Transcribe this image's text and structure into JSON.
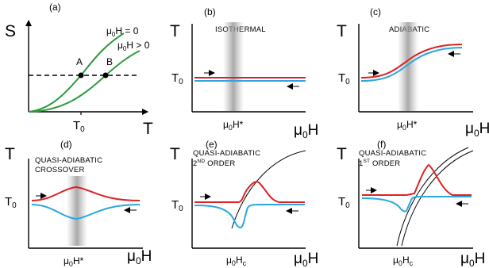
{
  "panels": [
    {
      "id": "a",
      "label": "(a)",
      "y_axis": "S",
      "x_axis": "T",
      "x_tick": "T",
      "x_tick_sub": "0",
      "curve_labels": [
        {
          "mu": "μ",
          "sub": "0",
          "rest": "H = 0"
        },
        {
          "mu": "μ",
          "sub": "0",
          "rest": "H > 0"
        }
      ],
      "points": [
        "A",
        "B"
      ]
    },
    {
      "id": "b",
      "label": "(b)",
      "y_axis": "T",
      "title_lines": [
        "ISOTHERMAL"
      ],
      "y_tick": "T",
      "y_tick_sub": "0",
      "x_tick": {
        "mu": "μ",
        "sub": "0",
        "rest": "H*"
      }
    },
    {
      "id": "c",
      "label": "(c)",
      "y_axis": "T",
      "title_lines": [
        "ADIABATIC"
      ],
      "y_tick": "T",
      "y_tick_sub": "0",
      "x_tick": {
        "mu": "μ",
        "sub": "0",
        "rest": "H*"
      },
      "x_axis": {
        "mu": "μ",
        "sub": "0",
        "rest": "H"
      }
    },
    {
      "id": "d",
      "label": "(d)",
      "y_axis": "T",
      "title_lines": [
        "QUASI-ADIABATIC",
        "CROSSOVER"
      ],
      "y_tick": "T",
      "y_tick_sub": "0",
      "x_tick": {
        "mu": "μ",
        "sub": "0",
        "rest": "H*"
      },
      "x_axis": {
        "mu": "μ",
        "sub": "0",
        "rest": "H"
      }
    },
    {
      "id": "e",
      "label": "(e)",
      "y_axis": "T",
      "title_lines": [
        "QUASI-ADIABATIC",
        "ORDER"
      ],
      "order": "2",
      "order_sup": "ND",
      "y_tick": "T",
      "y_tick_sub": "0",
      "x_tick": {
        "mu": "μ",
        "sub": "0",
        "rest": "H",
        "sub2": "c"
      },
      "x_axis": {
        "mu": "μ",
        "sub": "0",
        "rest": "H"
      }
    },
    {
      "id": "f",
      "label": "(f)",
      "y_axis": "T",
      "title_lines": [
        "QUASI-ADIABATIC",
        "ORDER"
      ],
      "order": "1",
      "order_sup": "ST",
      "y_tick": "T",
      "y_tick_sub": "0",
      "x_tick": {
        "mu": "μ",
        "sub": "0",
        "rest": "H",
        "sub2": "c"
      },
      "x_axis": {
        "mu": "μ",
        "sub": "0",
        "rest": "H"
      }
    }
  ],
  "colors": {
    "red": "#dd2222",
    "blue": "#2aa7e0",
    "green": "#2a9a3a",
    "band": "#b0b0b0"
  }
}
